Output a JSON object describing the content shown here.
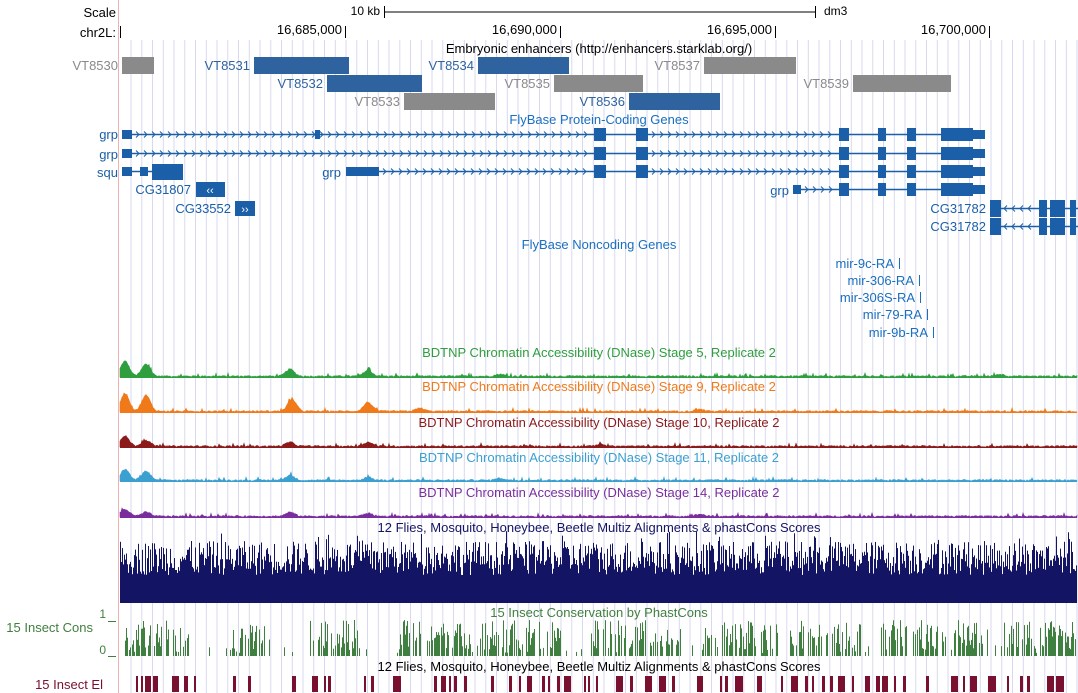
{
  "ruler": {
    "scale_label": "Scale",
    "chrom_label": "chr2L:",
    "scale_bar_label": "10 kb",
    "assembly": "dm3",
    "ticks": [
      "16,685,000",
      "16,690,000",
      "16,695,000",
      "16,700,000"
    ]
  },
  "tracks": {
    "enhancers": {
      "title": "Embryonic enhancers (http://enhancers.starklab.org/)",
      "items": [
        {
          "name": "VT8530",
          "active": false
        },
        {
          "name": "VT8531",
          "active": true
        },
        {
          "name": "VT8532",
          "active": true
        },
        {
          "name": "VT8533",
          "active": false
        },
        {
          "name": "VT8534",
          "active": true
        },
        {
          "name": "VT8535",
          "active": false
        },
        {
          "name": "VT8536",
          "active": true
        },
        {
          "name": "VT8537",
          "active": false
        },
        {
          "name": "VT8539",
          "active": false
        }
      ]
    },
    "protein_coding": {
      "title": "FlyBase Protein-Coding Genes",
      "genes": [
        "grp",
        "grp",
        "squ",
        "CG31807",
        "CG33552",
        "grp",
        "grp",
        "CG31782",
        "CG31782"
      ]
    },
    "noncoding": {
      "title": "FlyBase Noncoding Genes",
      "genes": [
        "mir-9c-RA",
        "mir-306-RA",
        "mir-306S-RA",
        "mir-79-RA",
        "mir-9b-RA"
      ]
    },
    "dnase": [
      {
        "title": "BDTNP Chromatin Accessibility (DNase) Stage 5, Replicate 2",
        "color": "#2e9e3e"
      },
      {
        "title": "BDTNP Chromatin Accessibility (DNase) Stage 9, Replicate 2",
        "color": "#f07a1a"
      },
      {
        "title": "BDTNP Chromatin Accessibility (DNase) Stage 10, Replicate 2",
        "color": "#8b1a1a"
      },
      {
        "title": "BDTNP Chromatin Accessibility (DNase) Stage 11, Replicate 2",
        "color": "#3aa0d0"
      },
      {
        "title": "BDTNP Chromatin Accessibility (DNase) Stage 14, Replicate 2",
        "color": "#7a2e9e"
      }
    ],
    "multiz": {
      "title": "12 Flies, Mosquito, Honeybee, Beetle Multiz Alignments & phastCons Scores",
      "color": "#141464"
    },
    "phastcons": {
      "title": "15 Insect Conservation by PhastCons",
      "side_label": "15 Insect Cons",
      "ymax_label": "1",
      "ymin_label": "0",
      "color": "#3f7f3f"
    },
    "elements": {
      "title": "12 Flies, Mosquito, Honeybee, Beetle Multiz Alignments & phastCons Scores",
      "side_label": "15 Insect El",
      "color": "#7a1030"
    }
  },
  "colors": {
    "gene_blue": "#1a5fa8",
    "enhancer_blue": "#2f63a0",
    "enhancer_gray": "#8a8a8a",
    "guide_line": "#d8d8f0"
  }
}
